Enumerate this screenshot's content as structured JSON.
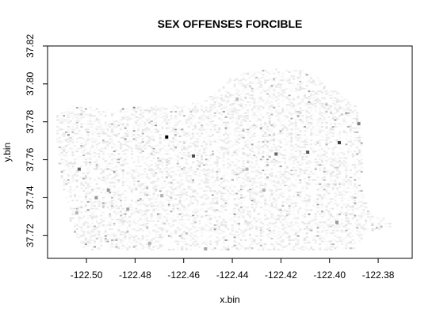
{
  "chart_data": {
    "type": "heatmap",
    "title": "SEX OFFENSES FORCIBLE",
    "xlabel": "x.bin",
    "ylabel": "y.bin",
    "xlim": [
      -122.516,
      -122.366
    ],
    "ylim": [
      37.708,
      37.82
    ],
    "x_ticks": [
      -122.5,
      -122.48,
      -122.46,
      -122.44,
      -122.42,
      -122.4,
      -122.38
    ],
    "x_tick_labels": [
      "-122.50",
      "-122.48",
      "-122.46",
      "-122.44",
      "-122.42",
      "-122.40",
      "-122.38"
    ],
    "y_ticks": [
      37.72,
      37.74,
      37.76,
      37.78,
      37.8,
      37.82
    ],
    "y_tick_labels": [
      "37.72",
      "37.74",
      "37.76",
      "37.78",
      "37.80",
      "37.82"
    ],
    "colorscale": [
      "#ffffff",
      "#000000"
    ],
    "background_cell_intensity_range": [
      0.0,
      0.12
    ],
    "hotspots": [
      {
        "x": -122.467,
        "y": 37.772,
        "intensity": 1.0
      },
      {
        "x": -122.456,
        "y": 37.762,
        "intensity": 0.7
      },
      {
        "x": -122.422,
        "y": 37.763,
        "intensity": 0.6
      },
      {
        "x": -122.409,
        "y": 37.764,
        "intensity": 0.65
      },
      {
        "x": -122.396,
        "y": 37.769,
        "intensity": 0.75
      },
      {
        "x": -122.388,
        "y": 37.779,
        "intensity": 0.5
      },
      {
        "x": -122.503,
        "y": 37.755,
        "intensity": 0.6
      },
      {
        "x": -122.496,
        "y": 37.74,
        "intensity": 0.4
      },
      {
        "x": -122.491,
        "y": 37.744,
        "intensity": 0.4
      },
      {
        "x": -122.483,
        "y": 37.734,
        "intensity": 0.35
      },
      {
        "x": -122.469,
        "y": 37.741,
        "intensity": 0.3
      },
      {
        "x": -122.504,
        "y": 37.732,
        "intensity": 0.3
      },
      {
        "x": -122.397,
        "y": 37.727,
        "intensity": 0.4
      },
      {
        "x": -122.427,
        "y": 37.744,
        "intensity": 0.3
      },
      {
        "x": -122.434,
        "y": 37.755,
        "intensity": 0.3
      },
      {
        "x": -122.438,
        "y": 37.792,
        "intensity": 0.25
      },
      {
        "x": -122.451,
        "y": 37.713,
        "intensity": 0.35
      },
      {
        "x": -122.474,
        "y": 37.716,
        "intensity": 0.3
      }
    ]
  }
}
